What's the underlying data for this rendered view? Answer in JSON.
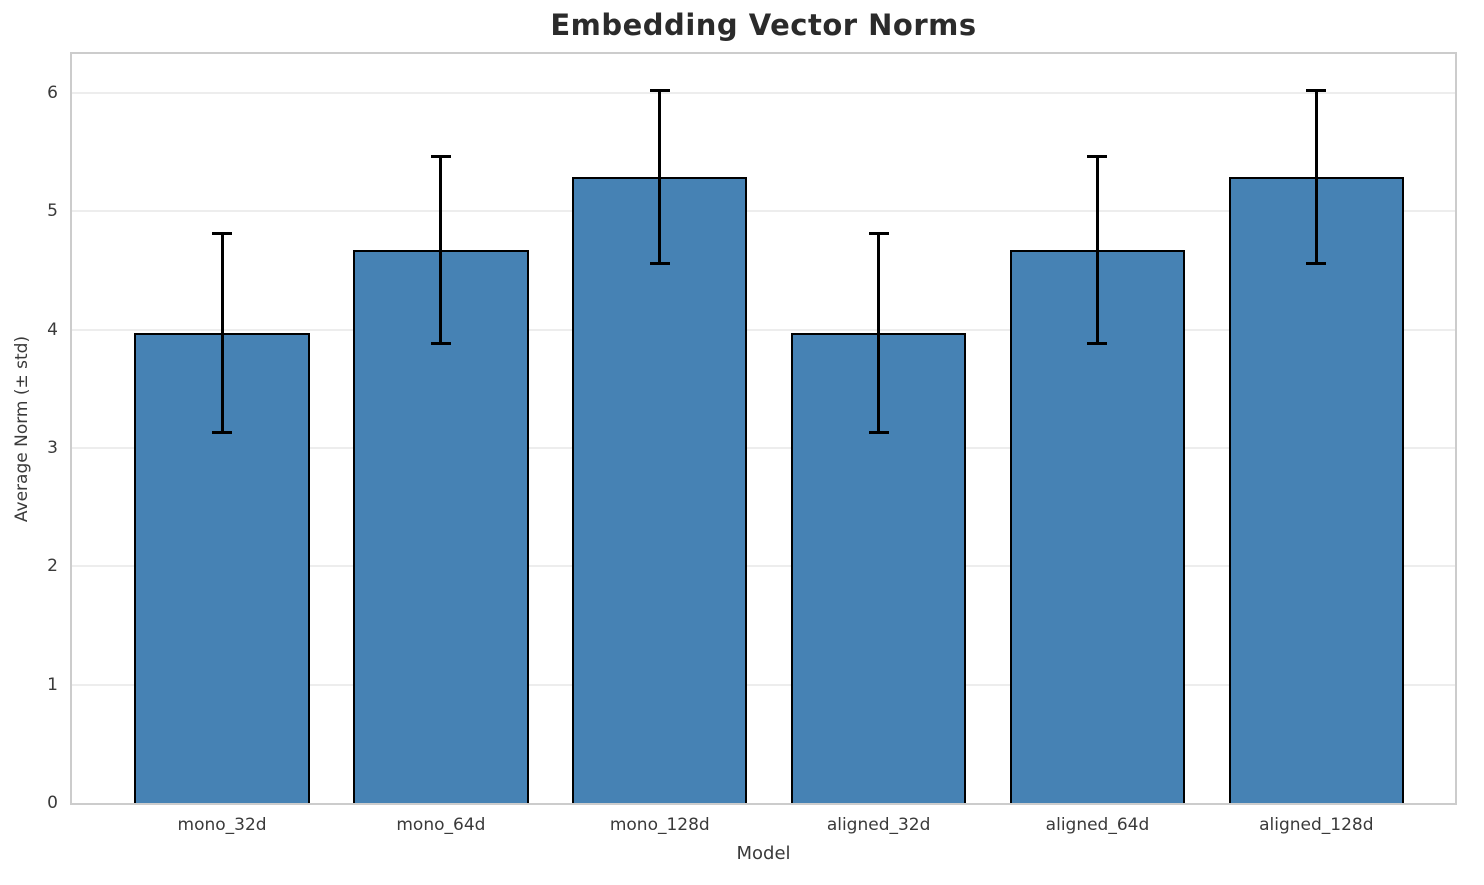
{
  "chart_data": {
    "type": "bar",
    "title": "Embedding Vector Norms",
    "xlabel": "Model",
    "ylabel": "Average Norm (± std)",
    "categories": [
      "mono_32d",
      "mono_64d",
      "mono_128d",
      "aligned_32d",
      "aligned_64d",
      "aligned_128d"
    ],
    "values": [
      3.97,
      4.67,
      5.29,
      3.97,
      4.67,
      5.29
    ],
    "errors": [
      0.84,
      0.79,
      0.73,
      0.84,
      0.79,
      0.73
    ],
    "ylim": [
      0,
      6.33
    ],
    "yticks": [
      0,
      1,
      2,
      3,
      4,
      5,
      6
    ],
    "grid": true,
    "legend": "none",
    "bar_color": "#4682b4",
    "bar_edge_color": "#000000",
    "error_color": "#000000",
    "background_color": "#ffffff",
    "spine_color": "#cccccc",
    "gridline_color": "#ededed"
  }
}
